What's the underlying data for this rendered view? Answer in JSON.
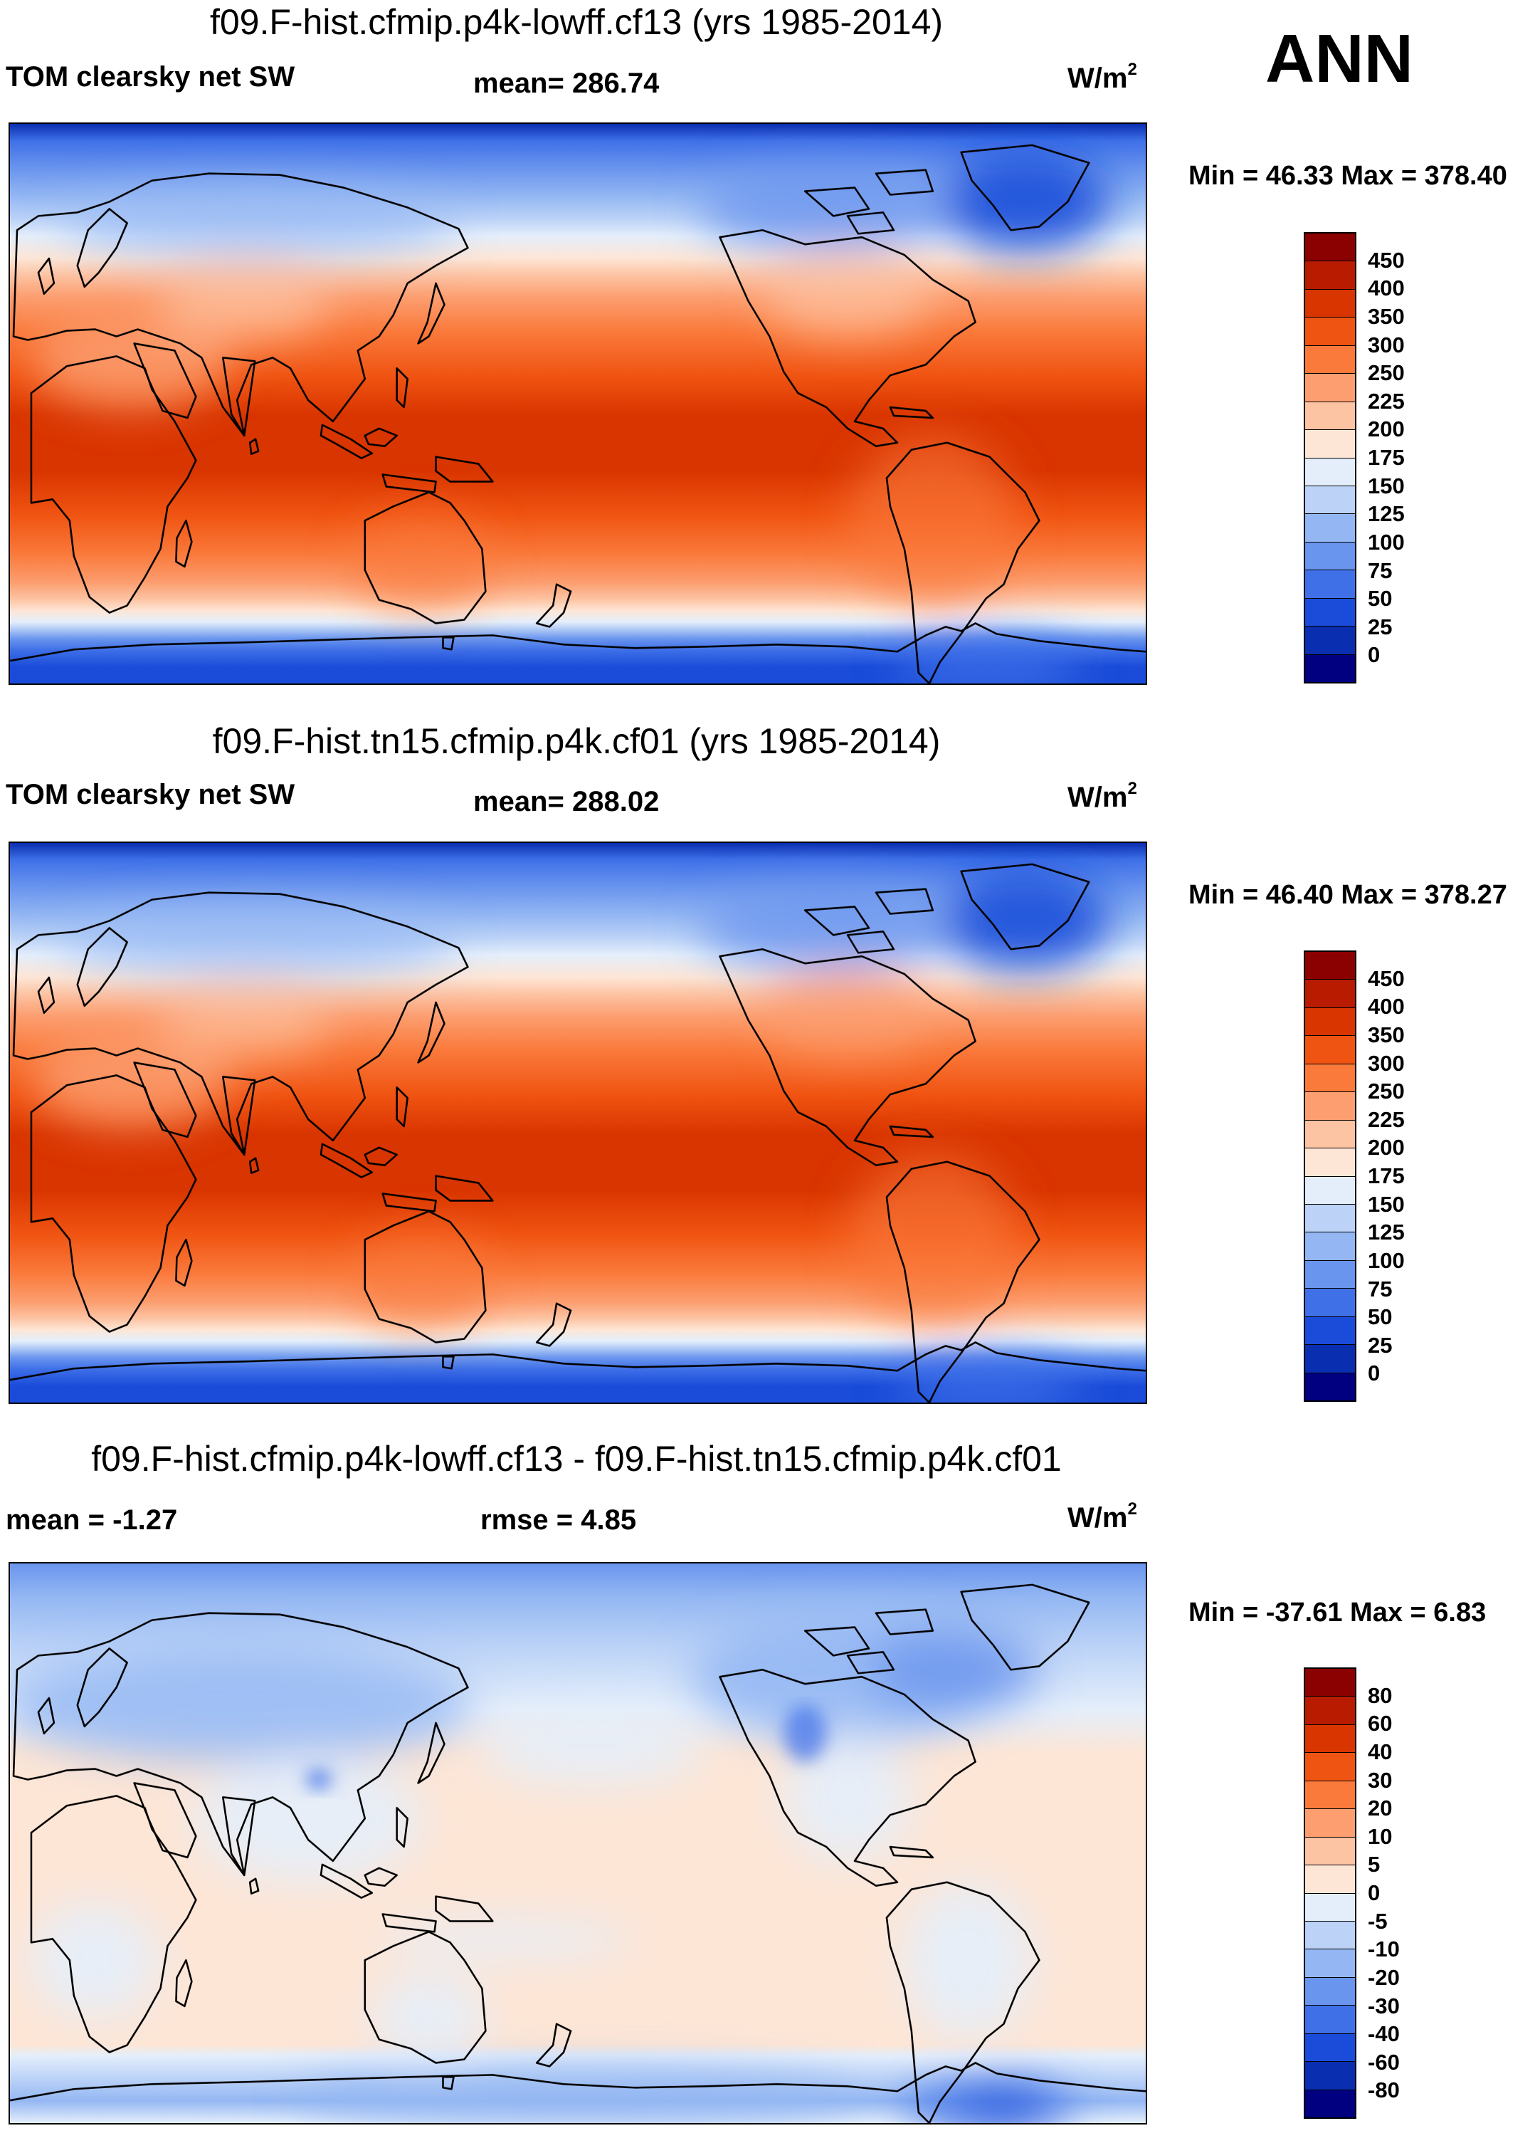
{
  "season": "ANN",
  "units_base": "W/m",
  "units_sup": "2",
  "panels": [
    {
      "title": "f09.F-hist.cfmip.p4k-lowff.cf13 (yrs 1985-2014)",
      "left_label": "TOM clearsky net SW",
      "center_label": "mean= 286.74",
      "minmax": "Min =  46.33 Max = 378.40"
    },
    {
      "title": "f09.F-hist.tn15.cfmip.p4k.cf01 (yrs 1985-2014)",
      "left_label": "TOM clearsky net SW",
      "center_label": "mean= 288.02",
      "minmax": "Min =  46.40 Max = 378.27"
    },
    {
      "title": "f09.F-hist.cfmip.p4k-lowff.cf13 - f09.F-hist.tn15.cfmip.p4k.cf01",
      "left_label": "mean =  -1.27",
      "center_label": "rmse =   4.85",
      "minmax": "Min = -37.61 Max =   6.83"
    }
  ],
  "colorbars": {
    "absolute": {
      "labels": [
        "450",
        "400",
        "350",
        "300",
        "250",
        "225",
        "200",
        "175",
        "150",
        "125",
        "100",
        "75",
        "50",
        "25",
        "0"
      ],
      "colors": [
        "#8b0000",
        "#b81b00",
        "#d93500",
        "#f05412",
        "#fa7a3c",
        "#fc9e70",
        "#fdc4a4",
        "#fde6d6",
        "#e4eefb",
        "#bcd3f7",
        "#94b7f3",
        "#6a95ee",
        "#3f70e8",
        "#1a4cd9",
        "#0a2eb0",
        "#000080"
      ]
    },
    "difference": {
      "labels": [
        "80",
        "60",
        "40",
        "30",
        "20",
        "10",
        "5",
        "0",
        "-5",
        "-10",
        "-20",
        "-30",
        "-40",
        "-60",
        "-80"
      ],
      "colors": [
        "#8b0000",
        "#b81b00",
        "#d93500",
        "#f05412",
        "#fa7a3c",
        "#fc9e70",
        "#fdc4a4",
        "#fde6d6",
        "#e4eefb",
        "#bcd3f7",
        "#94b7f3",
        "#6a95ee",
        "#3f70e8",
        "#1a4cd9",
        "#0a2eb0",
        "#000080"
      ]
    }
  }
}
